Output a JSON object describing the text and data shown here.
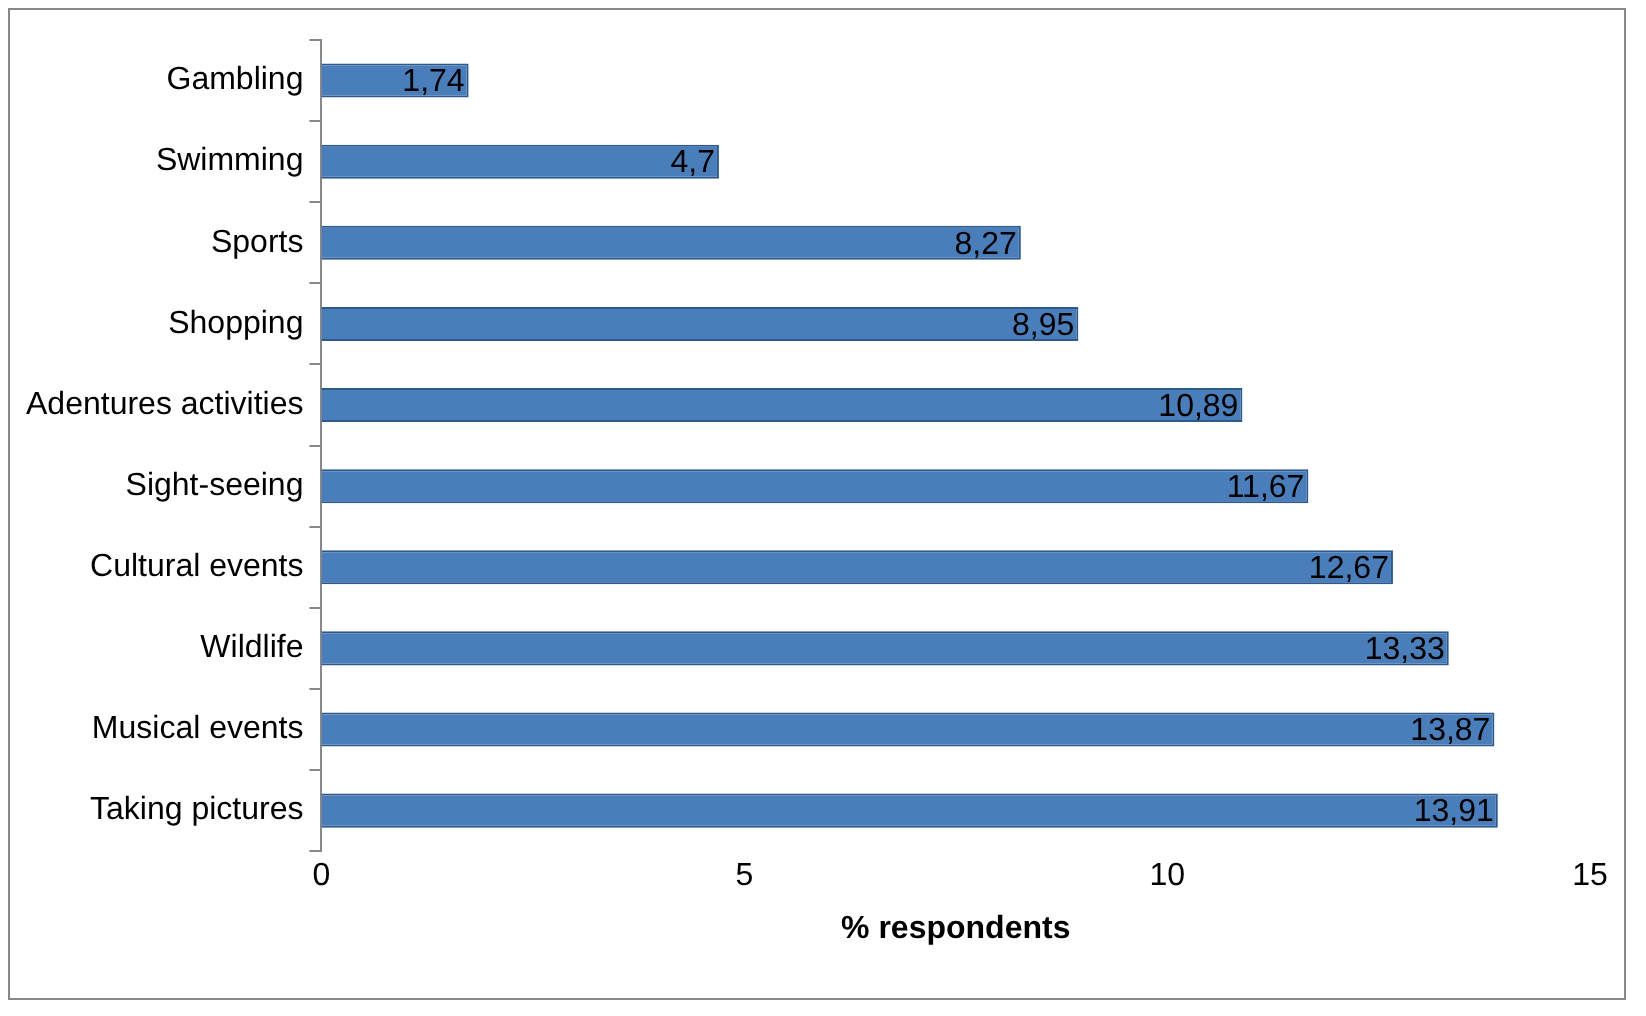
{
  "chart_data": {
    "type": "bar",
    "orientation": "horizontal",
    "xlabel": "% respondents",
    "categories": [
      "Gambling",
      "Swimming",
      "Sports",
      "Shopping",
      "Adentures activities",
      "Sight-seeing",
      "Cultural events",
      "Wildlife",
      "Musical events",
      "Taking pictures"
    ],
    "values": [
      1.74,
      4.7,
      8.27,
      8.95,
      10.89,
      11.67,
      12.67,
      13.33,
      13.87,
      13.91
    ],
    "value_labels": [
      "1,74",
      "4,7",
      "8,27",
      "8,95",
      "10,89",
      "11,67",
      "12,67",
      "13,33",
      "13,87",
      "13,91"
    ],
    "color": "#4a7ebb",
    "xlim": [
      0,
      15
    ],
    "xticks": [
      0,
      5,
      10,
      15
    ],
    "grid": false,
    "legend": false
  }
}
